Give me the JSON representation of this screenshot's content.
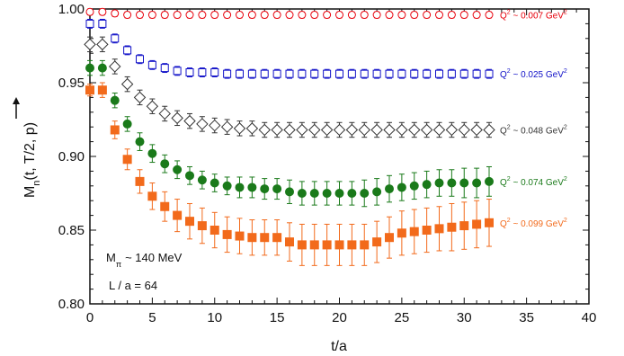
{
  "chart_data": {
    "type": "scatter",
    "title": "",
    "xlabel": "t/a",
    "ylabel": "M_n(t, T/2, p)",
    "xlim": [
      0,
      40
    ],
    "ylim": [
      0.8,
      1.0
    ],
    "x_ticks": [
      "0",
      "5",
      "10",
      "15",
      "20",
      "25",
      "30",
      "35",
      "40"
    ],
    "y_ticks": [
      "0.80",
      "0.85",
      "0.90",
      "0.95",
      "1.00"
    ],
    "annotations": {
      "mpi": "M",
      "mpi_sub": "π",
      "mpi_rest": "~ 140 MeV",
      "box": "L / a = 64"
    },
    "series": [
      {
        "name": "Q² ~ 0.007 GeV²",
        "label_main": "Q",
        "label_rest": " ~ 0.007 GeV",
        "color": "#e8000b",
        "marker": "circle-open",
        "x": [
          0,
          1,
          2,
          3,
          4,
          5,
          6,
          7,
          8,
          9,
          10,
          11,
          12,
          13,
          14,
          15,
          16,
          17,
          18,
          19,
          20,
          21,
          22,
          23,
          24,
          25,
          26,
          27,
          28,
          29,
          30,
          31,
          32
        ],
        "y": [
          0.998,
          0.998,
          0.997,
          0.996,
          0.996,
          0.996,
          0.996,
          0.996,
          0.996,
          0.996,
          0.996,
          0.996,
          0.996,
          0.996,
          0.996,
          0.996,
          0.996,
          0.996,
          0.996,
          0.996,
          0.996,
          0.996,
          0.996,
          0.996,
          0.996,
          0.996,
          0.996,
          0.996,
          0.996,
          0.996,
          0.996,
          0.996,
          0.996
        ],
        "err": [
          0.002,
          0.002,
          0.002,
          0.002,
          0.002,
          0.002,
          0.002,
          0.002,
          0.002,
          0.002,
          0.002,
          0.002,
          0.002,
          0.002,
          0.002,
          0.002,
          0.002,
          0.002,
          0.002,
          0.002,
          0.002,
          0.002,
          0.002,
          0.002,
          0.002,
          0.002,
          0.002,
          0.002,
          0.002,
          0.002,
          0.002,
          0.002,
          0.002
        ]
      },
      {
        "name": "Q² ~ 0.025 GeV²",
        "label_main": "Q",
        "label_rest": " ~ 0.025 GeV",
        "color": "#1010c8",
        "marker": "square-open",
        "x": [
          0,
          1,
          2,
          3,
          4,
          5,
          6,
          7,
          8,
          9,
          10,
          11,
          12,
          13,
          14,
          15,
          16,
          17,
          18,
          19,
          20,
          21,
          22,
          23,
          24,
          25,
          26,
          27,
          28,
          29,
          30,
          31,
          32
        ],
        "y": [
          0.99,
          0.99,
          0.98,
          0.972,
          0.966,
          0.962,
          0.96,
          0.958,
          0.957,
          0.957,
          0.957,
          0.956,
          0.956,
          0.956,
          0.956,
          0.956,
          0.956,
          0.956,
          0.956,
          0.956,
          0.956,
          0.956,
          0.956,
          0.956,
          0.956,
          0.956,
          0.956,
          0.956,
          0.956,
          0.956,
          0.956,
          0.956,
          0.956
        ],
        "err": [
          0.003,
          0.003,
          0.003,
          0.003,
          0.003,
          0.003,
          0.003,
          0.003,
          0.003,
          0.003,
          0.003,
          0.003,
          0.003,
          0.003,
          0.003,
          0.003,
          0.003,
          0.003,
          0.003,
          0.003,
          0.003,
          0.003,
          0.003,
          0.003,
          0.003,
          0.003,
          0.003,
          0.003,
          0.003,
          0.003,
          0.003,
          0.003,
          0.003
        ]
      },
      {
        "name": "Q² ~ 0.048 GeV²",
        "label_main": "Q",
        "label_rest": " ~ 0.048 GeV",
        "color": "#333333",
        "marker": "diamond-open",
        "x": [
          0,
          1,
          2,
          3,
          4,
          5,
          6,
          7,
          8,
          9,
          10,
          11,
          12,
          13,
          14,
          15,
          16,
          17,
          18,
          19,
          20,
          21,
          22,
          23,
          24,
          25,
          26,
          27,
          28,
          29,
          30,
          31,
          32
        ],
        "y": [
          0.976,
          0.976,
          0.961,
          0.949,
          0.94,
          0.934,
          0.929,
          0.926,
          0.924,
          0.922,
          0.921,
          0.92,
          0.919,
          0.919,
          0.918,
          0.918,
          0.918,
          0.918,
          0.918,
          0.918,
          0.918,
          0.918,
          0.918,
          0.918,
          0.918,
          0.918,
          0.918,
          0.918,
          0.918,
          0.918,
          0.918,
          0.918,
          0.918
        ],
        "err": [
          0.005,
          0.005,
          0.005,
          0.005,
          0.005,
          0.005,
          0.005,
          0.005,
          0.005,
          0.005,
          0.005,
          0.005,
          0.005,
          0.005,
          0.005,
          0.005,
          0.005,
          0.005,
          0.005,
          0.005,
          0.005,
          0.005,
          0.005,
          0.005,
          0.005,
          0.005,
          0.005,
          0.005,
          0.005,
          0.005,
          0.005,
          0.005,
          0.005
        ]
      },
      {
        "name": "Q² ~ 0.074 GeV²",
        "label_main": "Q",
        "label_rest": " ~ 0.074 GeV",
        "color": "#1a7a1a",
        "marker": "circle-filled",
        "x": [
          0,
          1,
          2,
          3,
          4,
          5,
          6,
          7,
          8,
          9,
          10,
          11,
          12,
          13,
          14,
          15,
          16,
          17,
          18,
          19,
          20,
          21,
          22,
          23,
          24,
          25,
          26,
          27,
          28,
          29,
          30,
          31,
          32
        ],
        "y": [
          0.96,
          0.96,
          0.938,
          0.922,
          0.91,
          0.902,
          0.895,
          0.891,
          0.887,
          0.884,
          0.882,
          0.88,
          0.879,
          0.879,
          0.878,
          0.878,
          0.876,
          0.875,
          0.875,
          0.875,
          0.875,
          0.875,
          0.875,
          0.876,
          0.878,
          0.879,
          0.88,
          0.881,
          0.882,
          0.882,
          0.882,
          0.882,
          0.883
        ],
        "err": [
          0.005,
          0.005,
          0.005,
          0.005,
          0.006,
          0.006,
          0.006,
          0.006,
          0.006,
          0.006,
          0.006,
          0.006,
          0.007,
          0.007,
          0.007,
          0.007,
          0.008,
          0.008,
          0.008,
          0.008,
          0.008,
          0.008,
          0.009,
          0.009,
          0.009,
          0.009,
          0.009,
          0.009,
          0.009,
          0.009,
          0.01,
          0.01,
          0.01
        ]
      },
      {
        "name": "Q² ~ 0.099 GeV²",
        "label_main": "Q",
        "label_rest": " ~ 0.099 GeV",
        "color": "#f26a1b",
        "marker": "square-filled",
        "x": [
          0,
          1,
          2,
          3,
          4,
          5,
          6,
          7,
          8,
          9,
          10,
          11,
          12,
          13,
          14,
          15,
          16,
          17,
          18,
          19,
          20,
          21,
          22,
          23,
          24,
          25,
          26,
          27,
          28,
          29,
          30,
          31,
          32
        ],
        "y": [
          0.945,
          0.945,
          0.918,
          0.898,
          0.883,
          0.873,
          0.866,
          0.86,
          0.856,
          0.853,
          0.85,
          0.847,
          0.846,
          0.845,
          0.845,
          0.845,
          0.842,
          0.84,
          0.84,
          0.84,
          0.84,
          0.84,
          0.84,
          0.842,
          0.845,
          0.848,
          0.849,
          0.85,
          0.851,
          0.852,
          0.853,
          0.854,
          0.855
        ],
        "err": [
          0.004,
          0.005,
          0.006,
          0.007,
          0.008,
          0.009,
          0.01,
          0.011,
          0.012,
          0.012,
          0.012,
          0.012,
          0.012,
          0.012,
          0.012,
          0.012,
          0.013,
          0.014,
          0.014,
          0.014,
          0.014,
          0.014,
          0.014,
          0.014,
          0.014,
          0.015,
          0.015,
          0.015,
          0.015,
          0.016,
          0.016,
          0.016,
          0.016
        ]
      }
    ]
  }
}
